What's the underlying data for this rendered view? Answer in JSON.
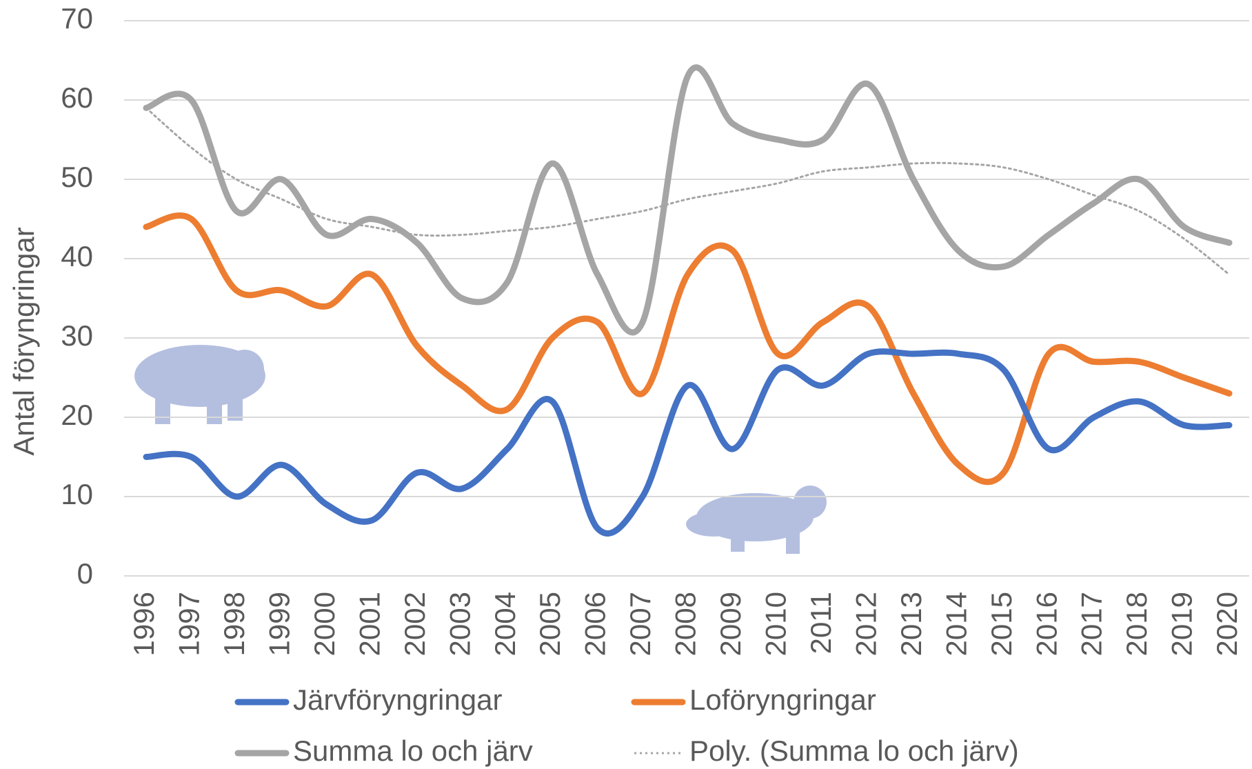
{
  "chart_data": {
    "type": "line",
    "y_label": "Antal  föryngringar",
    "categories": [
      "1996",
      "1997",
      "1998",
      "1999",
      "2000",
      "2001",
      "2002",
      "2003",
      "2004",
      "2005",
      "2006",
      "2007",
      "2008",
      "2009",
      "2010",
      "2011",
      "2012",
      "2013",
      "2014",
      "2015",
      "2016",
      "2017",
      "2018",
      "2019",
      "2020"
    ],
    "series": [
      {
        "name": "Järvföryngringar",
        "color": "#4472c4",
        "style": "solid",
        "values": [
          15,
          15,
          10,
          14,
          9,
          7,
          13,
          11,
          16,
          22,
          6,
          10,
          24,
          16,
          26,
          24,
          28,
          28,
          28,
          26,
          16,
          20,
          22,
          19,
          19
        ]
      },
      {
        "name": "Loföryngringar",
        "color": "#ed7d31",
        "style": "solid",
        "values": [
          44,
          45,
          36,
          36,
          34,
          38,
          29,
          24,
          21,
          30,
          32,
          23,
          38,
          41,
          28,
          32,
          34,
          23,
          14,
          13,
          28,
          27,
          27,
          25,
          23
        ]
      },
      {
        "name": "Summa lo och järv",
        "color": "#a5a5a5",
        "style": "solid",
        "values": [
          59,
          60,
          46,
          50,
          43,
          45,
          42,
          35,
          37,
          52,
          38,
          32,
          63,
          57,
          55,
          55,
          62,
          50,
          41,
          39,
          43,
          47,
          50,
          44,
          42
        ]
      },
      {
        "name": "Poly. (Summa lo och järv)",
        "color": "#a5a5a5",
        "style": "dotted",
        "values": [
          59,
          54,
          50,
          47.5,
          45,
          44,
          43,
          43,
          43.5,
          44,
          45,
          46,
          47.5,
          48.5,
          49.5,
          51,
          51.5,
          52,
          52,
          51.5,
          50,
          48,
          46,
          42.5,
          38
        ]
      }
    ],
    "ylim": [
      0,
      70
    ],
    "yticks": [
      0,
      10,
      20,
      30,
      40,
      50,
      60,
      70
    ],
    "grid": true
  }
}
